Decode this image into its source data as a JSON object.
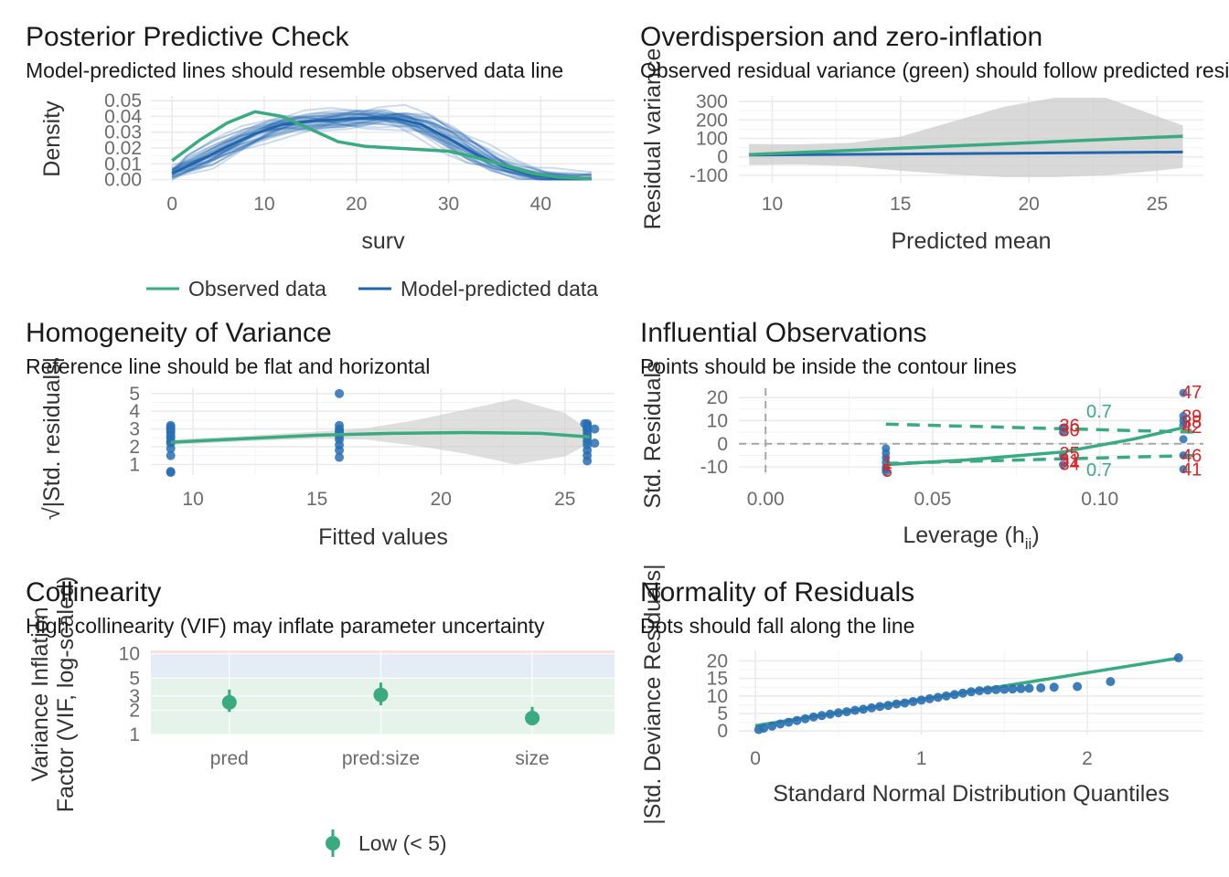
{
  "colors": {
    "observed": "#3aaa80",
    "predicted": "#2166ac",
    "points": "#2a6fb3",
    "labels": "#d62728",
    "ribbon": "#c9c9c9",
    "contour": "#3aaa80"
  },
  "panels": {
    "ppc": {
      "title": "Posterior Predictive Check",
      "subtitle": "Model-predicted lines should resemble observed data line",
      "xlabel": "surv",
      "ylabel": "Density",
      "legend": {
        "observed": "Observed data",
        "predicted": "Model-predicted data"
      }
    },
    "overdisp": {
      "title": "Overdispersion and zero-inflation",
      "subtitle": "Observed residual variance (green) should follow predicted residual variance (blue)",
      "xlabel": "Predicted mean",
      "ylabel": "Residual variance"
    },
    "homog": {
      "title": "Homogeneity of Variance",
      "subtitle": "Reference line should be flat and horizontal",
      "xlabel": "Fitted values",
      "ylabel": "√|Std. residuals|"
    },
    "influ": {
      "title": "Influential Observations",
      "subtitle": "Points should be inside the contour lines",
      "xlabel_main": "Leverage (h",
      "xlabel_sub": "ii",
      "xlabel_end": ")",
      "ylabel": "Std. Residuals"
    },
    "colli": {
      "title": "Collinearity",
      "subtitle": "High collinearity (VIF) may inflate parameter uncertainty",
      "ylabel_line1": "Variance Inflation",
      "ylabel_line2": "Factor (VIF, log-scaled)",
      "legend": {
        "low": "Low (< 5)"
      }
    },
    "normal": {
      "title": "Normality of Residuals",
      "subtitle": "Dots should fall along the line",
      "xlabel": "Standard Normal Distribution Quantiles",
      "ylabel": "|Std. Deviance Residuals|"
    }
  },
  "chart_data": [
    {
      "id": "ppc",
      "type": "line",
      "xlim": [
        -2.3,
        48
      ],
      "ylim": [
        -0.002,
        0.053
      ],
      "xticks": [
        0,
        10,
        20,
        30,
        40
      ],
      "yticks": [
        0.0,
        0.01,
        0.02,
        0.03,
        0.04,
        0.05
      ],
      "ytick_labels": [
        "0.00",
        "0.01",
        "0.02",
        "0.03",
        "0.04",
        "0.05"
      ],
      "observed": {
        "x": [
          0,
          3,
          6,
          9,
          12,
          15,
          18,
          21,
          24,
          27,
          30,
          33,
          36,
          39,
          42,
          45.5
        ],
        "y": [
          0.012,
          0.025,
          0.036,
          0.043,
          0.04,
          0.032,
          0.024,
          0.021,
          0.02,
          0.019,
          0.018,
          0.014,
          0.009,
          0.004,
          0.0015,
          0.0005
        ]
      },
      "predicted": {
        "x": [
          0,
          3,
          6,
          9,
          12,
          15,
          18,
          21,
          24,
          27,
          30,
          33,
          36,
          39,
          42,
          45.5
        ],
        "y": [
          0.004,
          0.012,
          0.021,
          0.029,
          0.035,
          0.037,
          0.038,
          0.039,
          0.039,
          0.035,
          0.026,
          0.016,
          0.008,
          0.003,
          0.001,
          0.0003
        ]
      }
    },
    {
      "id": "overdisp",
      "type": "line",
      "xlim": [
        8.7,
        26.8
      ],
      "ylim": [
        -140,
        330
      ],
      "xticks": [
        10,
        15,
        20,
        25
      ],
      "yticks": [
        -100,
        0,
        100,
        200,
        300
      ],
      "observed": {
        "x": [
          9.1,
          26
        ],
        "y": [
          12,
          112
        ]
      },
      "predicted": {
        "x": [
          9.1,
          26
        ],
        "y": [
          10,
          26
        ]
      },
      "ribbon": {
        "x": [
          9.1,
          11,
          13,
          15,
          17,
          19,
          21,
          23,
          25,
          26
        ],
        "upper": [
          70,
          68,
          75,
          110,
          190,
          270,
          320,
          320,
          220,
          170
        ],
        "lower": [
          -45,
          -42,
          -50,
          -75,
          -95,
          -110,
          -110,
          -100,
          -75,
          -60
        ]
      }
    },
    {
      "id": "homog",
      "type": "scatter",
      "xlim": [
        8.3,
        27
      ],
      "ylim": [
        0.4,
        5.3
      ],
      "xticks": [
        10,
        15,
        20,
        25
      ],
      "yticks": [
        1,
        2,
        3,
        4,
        5
      ],
      "points": [
        [
          9.1,
          3.2
        ],
        [
          9.1,
          3.0
        ],
        [
          9.1,
          2.8
        ],
        [
          9.1,
          2.6
        ],
        [
          9.1,
          2.5
        ],
        [
          9.1,
          2.2
        ],
        [
          9.1,
          1.9
        ],
        [
          9.1,
          1.5
        ],
        [
          9.1,
          0.6
        ],
        [
          9.1,
          0.55
        ],
        [
          9.1,
          3.1
        ],
        [
          9.1,
          2.9
        ],
        [
          9.1,
          2.3
        ],
        [
          15.9,
          5.0
        ],
        [
          15.9,
          3.2
        ],
        [
          15.9,
          3.0
        ],
        [
          15.9,
          2.8
        ],
        [
          15.9,
          2.6
        ],
        [
          15.9,
          2.4
        ],
        [
          15.9,
          2.1
        ],
        [
          15.9,
          1.8
        ],
        [
          15.9,
          1.4
        ],
        [
          15.9,
          2.9
        ],
        [
          25.9,
          3.3
        ],
        [
          25.9,
          3.2
        ],
        [
          25.9,
          3.1
        ],
        [
          25.9,
          3.0
        ],
        [
          25.9,
          2.9
        ],
        [
          25.9,
          2.7
        ],
        [
          25.9,
          2.5
        ],
        [
          25.9,
          2.3
        ],
        [
          25.9,
          2.1
        ],
        [
          25.9,
          1.8
        ],
        [
          25.9,
          1.5
        ],
        [
          25.9,
          1.2
        ],
        [
          25.8,
          3.3
        ],
        [
          26.2,
          3.0
        ],
        [
          26.2,
          2.2
        ]
      ],
      "smooth": {
        "x": [
          9.1,
          12,
          15,
          18,
          21,
          24,
          26
        ],
        "y": [
          2.25,
          2.45,
          2.65,
          2.75,
          2.8,
          2.75,
          2.55
        ]
      },
      "ribbon": {
        "x": [
          9.1,
          12,
          15,
          17,
          19,
          21,
          23,
          25,
          26
        ],
        "upper": [
          2.4,
          2.6,
          2.85,
          3.05,
          3.5,
          4.1,
          4.7,
          3.9,
          2.9
        ],
        "lower": [
          2.1,
          2.3,
          2.45,
          2.4,
          2.05,
          1.6,
          1.0,
          1.45,
          2.2
        ]
      }
    },
    {
      "id": "influ",
      "type": "scatter",
      "xlim": [
        -0.008,
        0.131
      ],
      "ylim": [
        -13.5,
        24
      ],
      "xticks": [
        0.0,
        0.05,
        0.1
      ],
      "xtick_labels": [
        "0.00",
        "0.05",
        "0.10"
      ],
      "yticks": [
        -10,
        0,
        10,
        20
      ],
      "points": [
        [
          0.036,
          -12
        ],
        [
          0.036,
          -10
        ],
        [
          0.036,
          -8
        ],
        [
          0.036,
          -6
        ],
        [
          0.036,
          -4
        ],
        [
          0.036,
          -2
        ],
        [
          0.036,
          -11
        ],
        [
          0.089,
          7
        ],
        [
          0.089,
          5
        ],
        [
          0.089,
          -5
        ],
        [
          0.089,
          -9
        ],
        [
          0.125,
          22
        ],
        [
          0.125,
          12
        ],
        [
          0.125,
          10
        ],
        [
          0.125,
          8
        ],
        [
          0.125,
          2
        ],
        [
          0.125,
          -5
        ],
        [
          0.125,
          -11
        ]
      ],
      "smooth": {
        "x": [
          0.036,
          0.06,
          0.089,
          0.11,
          0.125
        ],
        "y": [
          -9,
          -7,
          -3.5,
          2,
          7
        ]
      },
      "contours": {
        "x": [
          0.036,
          0.129
        ],
        "upper": [
          8.5,
          5
        ],
        "lower": [
          -8.5,
          -5
        ],
        "label": "0.7"
      },
      "labels": [
        {
          "x": 0.036,
          "y": -8,
          "text": "1"
        },
        {
          "x": 0.036,
          "y": -11.5,
          "text": "5"
        },
        {
          "x": 0.089,
          "y": 8,
          "text": "36"
        },
        {
          "x": 0.089,
          "y": 6,
          "text": "30"
        },
        {
          "x": 0.089,
          "y": -4,
          "text": "25"
        },
        {
          "x": 0.089,
          "y": -7,
          "text": "31"
        },
        {
          "x": 0.089,
          "y": -8.5,
          "text": "34"
        },
        {
          "x": 0.125,
          "y": 22.5,
          "text": "47"
        },
        {
          "x": 0.125,
          "y": 12,
          "text": "39"
        },
        {
          "x": 0.125,
          "y": 9.5,
          "text": "38"
        },
        {
          "x": 0.125,
          "y": 7.5,
          "text": "42"
        },
        {
          "x": 0.125,
          "y": -5,
          "text": "46"
        },
        {
          "x": 0.125,
          "y": -11,
          "text": "41"
        }
      ]
    },
    {
      "id": "colli",
      "type": "scatter",
      "yscale": "log",
      "ylim": [
        1,
        11
      ],
      "categories": [
        "pred",
        "pred:size",
        "size"
      ],
      "yticks": [
        1,
        2,
        3,
        5,
        10
      ],
      "vif": [
        {
          "term": "pred",
          "vif": 2.5,
          "lo": 1.9,
          "hi": 3.6
        },
        {
          "term": "pred:size",
          "vif": 3.1,
          "lo": 2.3,
          "hi": 4.4
        },
        {
          "term": "size",
          "vif": 1.6,
          "lo": 1.3,
          "hi": 2.2
        }
      ],
      "bands": {
        "low": [
          1,
          5
        ],
        "moderate": [
          5,
          10
        ],
        "high": [
          10,
          11
        ]
      }
    },
    {
      "id": "normal",
      "type": "scatter",
      "xlim": [
        -0.1,
        2.7
      ],
      "ylim": [
        -1,
        23
      ],
      "xticks": [
        0,
        1,
        2
      ],
      "yticks": [
        0,
        5,
        10,
        15,
        20
      ],
      "line": {
        "x": [
          0,
          2.55
        ],
        "y": [
          1.5,
          20.8
        ]
      },
      "points": [
        [
          0.02,
          0.4
        ],
        [
          0.05,
          0.8
        ],
        [
          0.1,
          1.4
        ],
        [
          0.15,
          2.0
        ],
        [
          0.2,
          2.5
        ],
        [
          0.25,
          3.0
        ],
        [
          0.3,
          3.5
        ],
        [
          0.35,
          4.0
        ],
        [
          0.4,
          4.4
        ],
        [
          0.45,
          4.8
        ],
        [
          0.5,
          5.2
        ],
        [
          0.55,
          5.5
        ],
        [
          0.6,
          5.9
        ],
        [
          0.65,
          6.2
        ],
        [
          0.7,
          6.6
        ],
        [
          0.75,
          7.0
        ],
        [
          0.8,
          7.3
        ],
        [
          0.85,
          7.7
        ],
        [
          0.9,
          8.0
        ],
        [
          0.95,
          8.4
        ],
        [
          1.0,
          8.8
        ],
        [
          1.05,
          9.2
        ],
        [
          1.1,
          9.6
        ],
        [
          1.15,
          10.0
        ],
        [
          1.2,
          10.4
        ],
        [
          1.25,
          10.8
        ],
        [
          1.3,
          11.2
        ],
        [
          1.35,
          11.5
        ],
        [
          1.4,
          11.7
        ],
        [
          1.45,
          11.8
        ],
        [
          1.5,
          11.9
        ],
        [
          1.55,
          12.0
        ],
        [
          1.6,
          12.1
        ],
        [
          1.65,
          12.2
        ],
        [
          1.72,
          12.3
        ],
        [
          1.8,
          12.5
        ],
        [
          1.94,
          12.7
        ],
        [
          2.14,
          14.1
        ],
        [
          2.55,
          20.9
        ]
      ]
    }
  ]
}
